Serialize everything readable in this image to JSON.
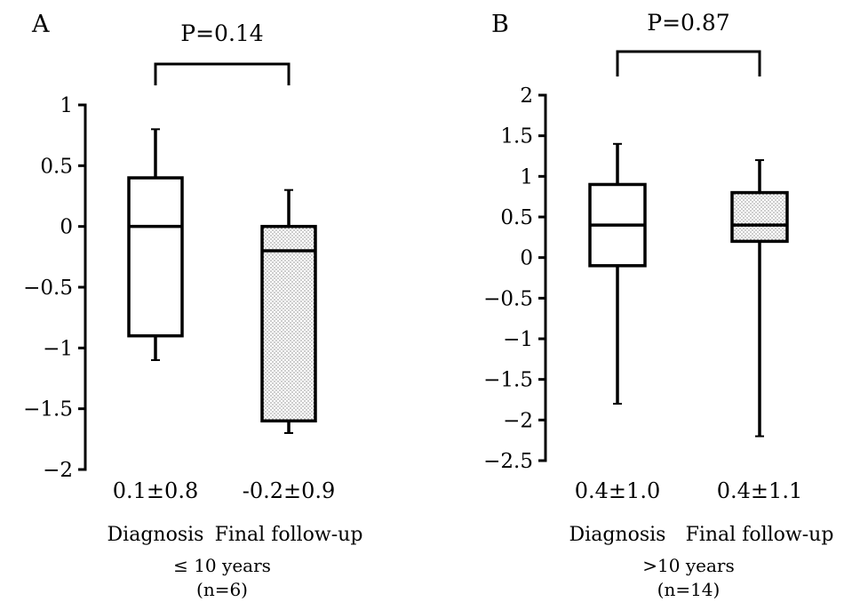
{
  "chart_data": [
    {
      "type": "box",
      "panel_label": "A",
      "ylim": [
        -2,
        1
      ],
      "yticks": [
        1,
        0.5,
        0,
        -0.5,
        -1,
        -1.5,
        -2
      ],
      "ytick_labels": [
        "1",
        "0.5",
        "0",
        "−0.5",
        "−1",
        "−1.5",
        "−2"
      ],
      "categories": [
        "Diagnosis",
        "Final follow-up"
      ],
      "boxes": [
        {
          "category": "Diagnosis",
          "whisker_low": -1.1,
          "q1": -0.9,
          "median": 0.0,
          "q3": 0.4,
          "whisker_high": 0.8,
          "pattern": "none",
          "summary": "0.1±0.8"
        },
        {
          "category": "Final follow-up",
          "whisker_low": -1.7,
          "q1": -1.6,
          "median": -0.2,
          "q3": 0.0,
          "whisker_high": 0.3,
          "pattern": "dotted",
          "summary": "-0.2±0.9"
        }
      ],
      "significance": {
        "text": "P=0.14"
      },
      "group_label": "≤ 10 years",
      "n_label": "(n=6)"
    },
    {
      "type": "box",
      "panel_label": "B",
      "ylim": [
        -2.5,
        2
      ],
      "yticks": [
        2,
        1.5,
        1,
        0.5,
        0,
        -0.5,
        -1,
        -1.5,
        -2,
        -2.5
      ],
      "ytick_labels": [
        "2",
        "1.5",
        "1",
        "0.5",
        "0",
        "−0.5",
        "−1",
        "−1.5",
        "−2",
        "−2.5"
      ],
      "categories": [
        "Diagnosis",
        "Final follow-up"
      ],
      "boxes": [
        {
          "category": "Diagnosis",
          "whisker_low": -1.8,
          "q1": -0.1,
          "median": 0.4,
          "q3": 0.9,
          "whisker_high": 1.4,
          "pattern": "none",
          "summary": "0.4±1.0"
        },
        {
          "category": "Final follow-up",
          "whisker_low": -2.2,
          "q1": 0.2,
          "median": 0.4,
          "q3": 0.8,
          "whisker_high": 1.2,
          "pattern": "dotted",
          "summary": "0.4±1.1"
        }
      ],
      "significance": {
        "text": "P=0.87"
      },
      "group_label": ">10 years",
      "n_label": "(n=14)"
    }
  ],
  "colors": {
    "stroke": "#000000",
    "fill": "#ffffff",
    "dot": "#555555"
  }
}
